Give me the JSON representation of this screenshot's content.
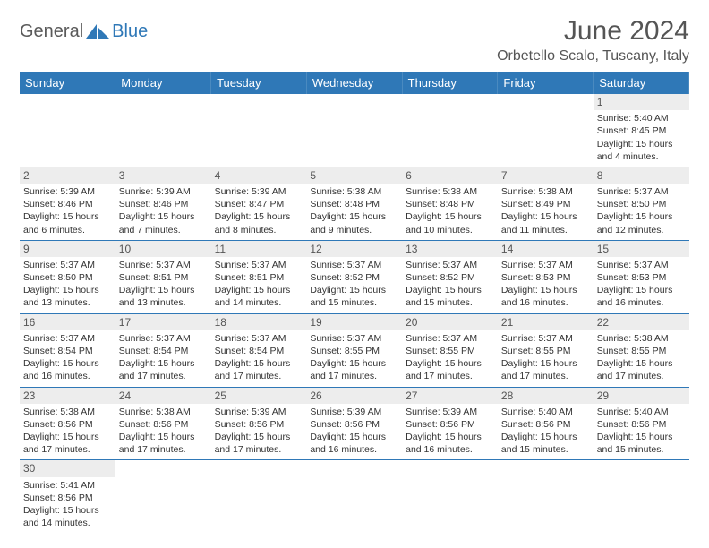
{
  "logo": {
    "part1": "General",
    "part2": "Blue"
  },
  "title": "June 2024",
  "location": "Orbetello Scalo, Tuscany, Italy",
  "colors": {
    "header_bg": "#2f78b7",
    "header_text": "#ffffff",
    "divider": "#2f78b7",
    "daynum_bg": "#ededed",
    "text": "#333333",
    "title_text": "#555555"
  },
  "weekdays": [
    "Sunday",
    "Monday",
    "Tuesday",
    "Wednesday",
    "Thursday",
    "Friday",
    "Saturday"
  ],
  "weeks": [
    [
      null,
      null,
      null,
      null,
      null,
      null,
      {
        "n": "1",
        "sr": "5:40 AM",
        "ss": "8:45 PM",
        "dl": "15 hours and 4 minutes."
      }
    ],
    [
      {
        "n": "2",
        "sr": "5:39 AM",
        "ss": "8:46 PM",
        "dl": "15 hours and 6 minutes."
      },
      {
        "n": "3",
        "sr": "5:39 AM",
        "ss": "8:46 PM",
        "dl": "15 hours and 7 minutes."
      },
      {
        "n": "4",
        "sr": "5:39 AM",
        "ss": "8:47 PM",
        "dl": "15 hours and 8 minutes."
      },
      {
        "n": "5",
        "sr": "5:38 AM",
        "ss": "8:48 PM",
        "dl": "15 hours and 9 minutes."
      },
      {
        "n": "6",
        "sr": "5:38 AM",
        "ss": "8:48 PM",
        "dl": "15 hours and 10 minutes."
      },
      {
        "n": "7",
        "sr": "5:38 AM",
        "ss": "8:49 PM",
        "dl": "15 hours and 11 minutes."
      },
      {
        "n": "8",
        "sr": "5:37 AM",
        "ss": "8:50 PM",
        "dl": "15 hours and 12 minutes."
      }
    ],
    [
      {
        "n": "9",
        "sr": "5:37 AM",
        "ss": "8:50 PM",
        "dl": "15 hours and 13 minutes."
      },
      {
        "n": "10",
        "sr": "5:37 AM",
        "ss": "8:51 PM",
        "dl": "15 hours and 13 minutes."
      },
      {
        "n": "11",
        "sr": "5:37 AM",
        "ss": "8:51 PM",
        "dl": "15 hours and 14 minutes."
      },
      {
        "n": "12",
        "sr": "5:37 AM",
        "ss": "8:52 PM",
        "dl": "15 hours and 15 minutes."
      },
      {
        "n": "13",
        "sr": "5:37 AM",
        "ss": "8:52 PM",
        "dl": "15 hours and 15 minutes."
      },
      {
        "n": "14",
        "sr": "5:37 AM",
        "ss": "8:53 PM",
        "dl": "15 hours and 16 minutes."
      },
      {
        "n": "15",
        "sr": "5:37 AM",
        "ss": "8:53 PM",
        "dl": "15 hours and 16 minutes."
      }
    ],
    [
      {
        "n": "16",
        "sr": "5:37 AM",
        "ss": "8:54 PM",
        "dl": "15 hours and 16 minutes."
      },
      {
        "n": "17",
        "sr": "5:37 AM",
        "ss": "8:54 PM",
        "dl": "15 hours and 17 minutes."
      },
      {
        "n": "18",
        "sr": "5:37 AM",
        "ss": "8:54 PM",
        "dl": "15 hours and 17 minutes."
      },
      {
        "n": "19",
        "sr": "5:37 AM",
        "ss": "8:55 PM",
        "dl": "15 hours and 17 minutes."
      },
      {
        "n": "20",
        "sr": "5:37 AM",
        "ss": "8:55 PM",
        "dl": "15 hours and 17 minutes."
      },
      {
        "n": "21",
        "sr": "5:37 AM",
        "ss": "8:55 PM",
        "dl": "15 hours and 17 minutes."
      },
      {
        "n": "22",
        "sr": "5:38 AM",
        "ss": "8:55 PM",
        "dl": "15 hours and 17 minutes."
      }
    ],
    [
      {
        "n": "23",
        "sr": "5:38 AM",
        "ss": "8:56 PM",
        "dl": "15 hours and 17 minutes."
      },
      {
        "n": "24",
        "sr": "5:38 AM",
        "ss": "8:56 PM",
        "dl": "15 hours and 17 minutes."
      },
      {
        "n": "25",
        "sr": "5:39 AM",
        "ss": "8:56 PM",
        "dl": "15 hours and 17 minutes."
      },
      {
        "n": "26",
        "sr": "5:39 AM",
        "ss": "8:56 PM",
        "dl": "15 hours and 16 minutes."
      },
      {
        "n": "27",
        "sr": "5:39 AM",
        "ss": "8:56 PM",
        "dl": "15 hours and 16 minutes."
      },
      {
        "n": "28",
        "sr": "5:40 AM",
        "ss": "8:56 PM",
        "dl": "15 hours and 15 minutes."
      },
      {
        "n": "29",
        "sr": "5:40 AM",
        "ss": "8:56 PM",
        "dl": "15 hours and 15 minutes."
      }
    ],
    [
      {
        "n": "30",
        "sr": "5:41 AM",
        "ss": "8:56 PM",
        "dl": "15 hours and 14 minutes."
      },
      null,
      null,
      null,
      null,
      null,
      null
    ]
  ],
  "labels": {
    "sunrise": "Sunrise: ",
    "sunset": "Sunset: ",
    "daylight": "Daylight: "
  }
}
